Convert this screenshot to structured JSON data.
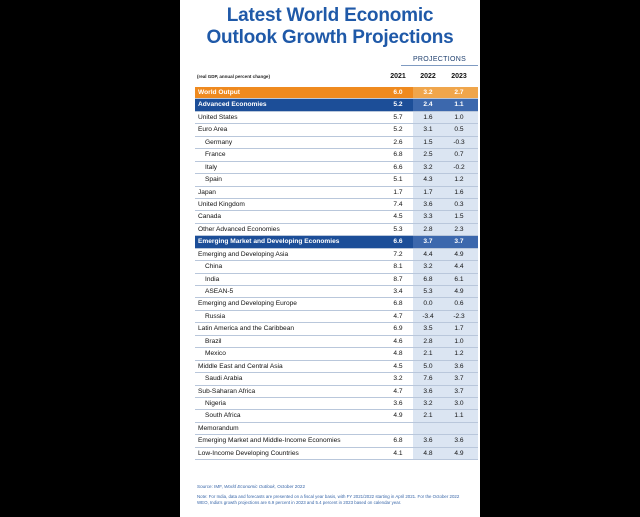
{
  "title_line1": "Latest World Economic",
  "title_line2": "Outlook Growth Projections",
  "projections_label": "PROJECTIONS",
  "units_note": "(real GDP, annual percent change)",
  "years": [
    "2021",
    "2022",
    "2023"
  ],
  "rows": [
    {
      "label": "World Output",
      "v": [
        "6.0",
        "3.2",
        "2.7"
      ],
      "style": "orange"
    },
    {
      "label": "Advanced Economies",
      "v": [
        "5.2",
        "2.4",
        "1.1"
      ],
      "style": "blue"
    },
    {
      "label": "United States",
      "v": [
        "5.7",
        "1.6",
        "1.0"
      ],
      "style": "top"
    },
    {
      "label": "Euro Area",
      "v": [
        "5.2",
        "3.1",
        "0.5"
      ],
      "style": "top"
    },
    {
      "label": "Germany",
      "v": [
        "2.6",
        "1.5",
        "-0.3"
      ],
      "style": "indent"
    },
    {
      "label": "France",
      "v": [
        "6.8",
        "2.5",
        "0.7"
      ],
      "style": "indent"
    },
    {
      "label": "Italy",
      "v": [
        "6.6",
        "3.2",
        "-0.2"
      ],
      "style": "indent"
    },
    {
      "label": "Spain",
      "v": [
        "5.1",
        "4.3",
        "1.2"
      ],
      "style": "indent"
    },
    {
      "label": "Japan",
      "v": [
        "1.7",
        "1.7",
        "1.6"
      ],
      "style": "top"
    },
    {
      "label": "United Kingdom",
      "v": [
        "7.4",
        "3.6",
        "0.3"
      ],
      "style": "top"
    },
    {
      "label": "Canada",
      "v": [
        "4.5",
        "3.3",
        "1.5"
      ],
      "style": "top"
    },
    {
      "label": "Other Advanced Economies",
      "v": [
        "5.3",
        "2.8",
        "2.3"
      ],
      "style": "top"
    },
    {
      "label": "Emerging Market and Developing Economies",
      "v": [
        "6.6",
        "3.7",
        "3.7"
      ],
      "style": "blue"
    },
    {
      "label": "Emerging and Developing Asia",
      "v": [
        "7.2",
        "4.4",
        "4.9"
      ],
      "style": "top"
    },
    {
      "label": "China",
      "v": [
        "8.1",
        "3.2",
        "4.4"
      ],
      "style": "indent"
    },
    {
      "label": "India",
      "v": [
        "8.7",
        "6.8",
        "6.1"
      ],
      "style": "indent"
    },
    {
      "label": "ASEAN-5",
      "v": [
        "3.4",
        "5.3",
        "4.9"
      ],
      "style": "indent"
    },
    {
      "label": "Emerging and Developing Europe",
      "v": [
        "6.8",
        "0.0",
        "0.6"
      ],
      "style": "top"
    },
    {
      "label": "Russia",
      "v": [
        "4.7",
        "-3.4",
        "-2.3"
      ],
      "style": "indent"
    },
    {
      "label": "Latin America and the Caribbean",
      "v": [
        "6.9",
        "3.5",
        "1.7"
      ],
      "style": "top"
    },
    {
      "label": "Brazil",
      "v": [
        "4.6",
        "2.8",
        "1.0"
      ],
      "style": "indent"
    },
    {
      "label": "Mexico",
      "v": [
        "4.8",
        "2.1",
        "1.2"
      ],
      "style": "indent"
    },
    {
      "label": "Middle East and Central Asia",
      "v": [
        "4.5",
        "5.0",
        "3.6"
      ],
      "style": "top"
    },
    {
      "label": "Saudi Arabia",
      "v": [
        "3.2",
        "7.6",
        "3.7"
      ],
      "style": "indent"
    },
    {
      "label": "Sub-Saharan Africa",
      "v": [
        "4.7",
        "3.6",
        "3.7"
      ],
      "style": "top"
    },
    {
      "label": "Nigeria",
      "v": [
        "3.6",
        "3.2",
        "3.0"
      ],
      "style": "indent"
    },
    {
      "label": "South Africa",
      "v": [
        "4.9",
        "2.1",
        "1.1"
      ],
      "style": "indent"
    },
    {
      "label": "Memorandum",
      "v": [
        "",
        "",
        ""
      ],
      "style": "top"
    },
    {
      "label": "Emerging Market and Middle-Income Economies",
      "v": [
        "6.8",
        "3.6",
        "3.6"
      ],
      "style": "top"
    },
    {
      "label": "Low-Income Developing Countries",
      "v": [
        "4.1",
        "4.8",
        "4.9"
      ],
      "style": "top"
    }
  ],
  "source_prefix": "Source: IMF,",
  "source_title": "World Economic Outlook,",
  "source_suffix": "October 2022",
  "note": "Note: For India, data and forecasts are presented on a fiscal year basis, with FY 2021/2022 starting in April 2021. For the October 2022 WEO, India's growth projections are 6.9 percent in 2023 and 5.4 percent in 2023 based on calendar year.",
  "colors": {
    "title": "#1f59a8",
    "orange": "#ef8a1f",
    "blue": "#1c4e98",
    "shade": "#dbe5f2"
  }
}
